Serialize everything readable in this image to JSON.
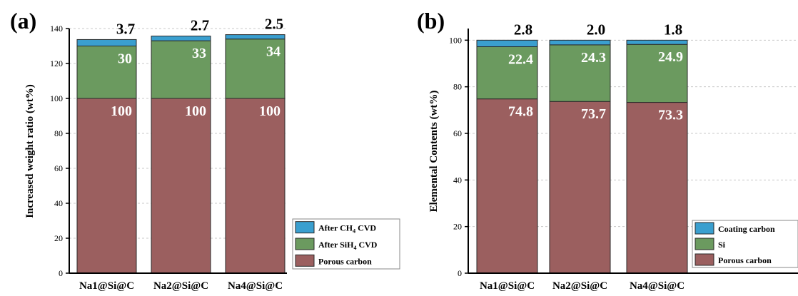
{
  "panels": [
    {
      "panel_label": "(a)",
      "chart_data": {
        "type": "bar",
        "stacked": true,
        "categories": [
          "Na1@Si@C",
          "Na2@Si@C",
          "Na4@Si@C"
        ],
        "ylabel": "Increased weight ratio (wt%)",
        "xlabel": "",
        "ylim": [
          0,
          140
        ],
        "yticks": [
          0,
          20,
          40,
          60,
          80,
          100,
          120,
          140
        ],
        "grid": true,
        "legend_position": "bottom-right",
        "series": [
          {
            "name": "Porous carbon",
            "values": [
              100,
              100,
              100
            ],
            "labels": [
              "100",
              "100",
              "100"
            ],
            "color": "#9b5f5f"
          },
          {
            "name": "After SiH4 CVD",
            "legend_main": "After SiH",
            "legend_sub": "4",
            "legend_tail": " CVD",
            "values": [
              30,
              33,
              34
            ],
            "labels": [
              "30",
              "33",
              "34"
            ],
            "color": "#6b9a5f"
          },
          {
            "name": "After CH4 CVD",
            "legend_main": "After CH",
            "legend_sub": "4",
            "legend_tail": " CVD",
            "values": [
              3.7,
              2.7,
              2.5
            ],
            "labels": [
              "3.7",
              "2.7",
              "2.5"
            ],
            "color": "#3a9fcf"
          }
        ]
      }
    },
    {
      "panel_label": "(b)",
      "chart_data": {
        "type": "bar",
        "stacked": true,
        "categories": [
          "Na1@Si@C",
          "Na2@Si@C",
          "Na4@Si@C"
        ],
        "ylabel": "Elemental Contents (wt%)",
        "xlabel": "",
        "ylim": [
          0,
          105
        ],
        "yticks": [
          0,
          20,
          40,
          60,
          80,
          100
        ],
        "grid": true,
        "legend_position": "bottom-right",
        "series": [
          {
            "name": "Porous carbon",
            "values": [
              74.8,
              73.7,
              73.3
            ],
            "labels": [
              "74.8",
              "73.7",
              "73.3"
            ],
            "color": "#9b5f5f"
          },
          {
            "name": "Si",
            "legend_main": "Si",
            "legend_sub": "",
            "legend_tail": "",
            "values": [
              22.4,
              24.3,
              24.9
            ],
            "labels": [
              "22.4",
              "24.3",
              "24.9"
            ],
            "color": "#6b9a5f"
          },
          {
            "name": "Coating carbon",
            "legend_main": "Coating carbon",
            "legend_sub": "",
            "legend_tail": "",
            "values": [
              2.8,
              2.0,
              1.8
            ],
            "labels": [
              "2.8",
              "2.0",
              "1.8"
            ],
            "color": "#3a9fcf"
          }
        ]
      }
    }
  ]
}
